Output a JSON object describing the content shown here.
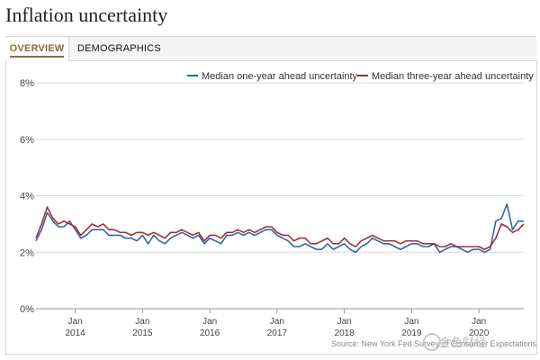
{
  "page": {
    "title": "Inflation uncertainty"
  },
  "tabs": [
    {
      "label": "OVERVIEW",
      "active": true
    },
    {
      "label": "DEMOGRAPHICS",
      "active": false
    }
  ],
  "source": "Source: New York Fed Survey of Consumer Expectations",
  "watermark": "金色财经",
  "colors": {
    "one_year": "#2e6a9e",
    "three_year": "#a33030",
    "grid": "#d9d9d9"
  },
  "chart_data": {
    "type": "line",
    "x_unit": "month",
    "x_start": "2013-06",
    "x_end": "2020-09",
    "ylim": [
      0,
      8
    ],
    "yticks": [
      {
        "value": 0,
        "label": "0%"
      },
      {
        "value": 2,
        "label": "2%"
      },
      {
        "value": 4,
        "label": "4%"
      },
      {
        "value": 6,
        "label": "6%"
      },
      {
        "value": 8,
        "label": "8%"
      }
    ],
    "xticks": [
      {
        "date": "2014-01",
        "label1": "Jan",
        "label2": "2014"
      },
      {
        "date": "2015-01",
        "label1": "Jan",
        "label2": "2015"
      },
      {
        "date": "2016-01",
        "label1": "Jan",
        "label2": "2016"
      },
      {
        "date": "2017-01",
        "label1": "Jan",
        "label2": "2017"
      },
      {
        "date": "2018-01",
        "label1": "Jan",
        "label2": "2018"
      },
      {
        "date": "2019-01",
        "label1": "Jan",
        "label2": "2019"
      },
      {
        "date": "2020-01",
        "label1": "Jan",
        "label2": "2020"
      }
    ],
    "grid": true,
    "legend_position": "top-right",
    "series": [
      {
        "name": "Median one-year ahead uncertainty",
        "color": "#2e6a9e",
        "points": [
          [
            "2013-06",
            2.4
          ],
          [
            "2013-07",
            2.8
          ],
          [
            "2013-08",
            3.4
          ],
          [
            "2013-09",
            3.1
          ],
          [
            "2013-10",
            2.9
          ],
          [
            "2013-11",
            2.9
          ],
          [
            "2013-12",
            3.1
          ],
          [
            "2014-01",
            2.8
          ],
          [
            "2014-02",
            2.5
          ],
          [
            "2014-03",
            2.6
          ],
          [
            "2014-04",
            2.8
          ],
          [
            "2014-05",
            2.8
          ],
          [
            "2014-06",
            2.8
          ],
          [
            "2014-07",
            2.6
          ],
          [
            "2014-08",
            2.6
          ],
          [
            "2014-09",
            2.6
          ],
          [
            "2014-10",
            2.5
          ],
          [
            "2014-11",
            2.5
          ],
          [
            "2014-12",
            2.4
          ],
          [
            "2015-01",
            2.6
          ],
          [
            "2015-02",
            2.3
          ],
          [
            "2015-03",
            2.6
          ],
          [
            "2015-04",
            2.4
          ],
          [
            "2015-05",
            2.3
          ],
          [
            "2015-06",
            2.5
          ],
          [
            "2015-07",
            2.6
          ],
          [
            "2015-08",
            2.7
          ],
          [
            "2015-09",
            2.6
          ],
          [
            "2015-10",
            2.5
          ],
          [
            "2015-11",
            2.6
          ],
          [
            "2015-12",
            2.3
          ],
          [
            "2016-01",
            2.5
          ],
          [
            "2016-02",
            2.4
          ],
          [
            "2016-03",
            2.3
          ],
          [
            "2016-04",
            2.6
          ],
          [
            "2016-05",
            2.6
          ],
          [
            "2016-06",
            2.7
          ],
          [
            "2016-07",
            2.6
          ],
          [
            "2016-08",
            2.7
          ],
          [
            "2016-09",
            2.6
          ],
          [
            "2016-10",
            2.7
          ],
          [
            "2016-11",
            2.8
          ],
          [
            "2016-12",
            2.8
          ],
          [
            "2017-01",
            2.6
          ],
          [
            "2017-02",
            2.5
          ],
          [
            "2017-03",
            2.4
          ],
          [
            "2017-04",
            2.2
          ],
          [
            "2017-05",
            2.2
          ],
          [
            "2017-06",
            2.3
          ],
          [
            "2017-07",
            2.2
          ],
          [
            "2017-08",
            2.1
          ],
          [
            "2017-09",
            2.1
          ],
          [
            "2017-10",
            2.3
          ],
          [
            "2017-11",
            2.1
          ],
          [
            "2017-12",
            2.2
          ],
          [
            "2018-01",
            2.3
          ],
          [
            "2018-02",
            2.1
          ],
          [
            "2018-03",
            2.0
          ],
          [
            "2018-04",
            2.2
          ],
          [
            "2018-05",
            2.3
          ],
          [
            "2018-06",
            2.5
          ],
          [
            "2018-07",
            2.4
          ],
          [
            "2018-08",
            2.3
          ],
          [
            "2018-09",
            2.3
          ],
          [
            "2018-10",
            2.2
          ],
          [
            "2018-11",
            2.1
          ],
          [
            "2018-12",
            2.2
          ],
          [
            "2019-01",
            2.3
          ],
          [
            "2019-02",
            2.3
          ],
          [
            "2019-03",
            2.2
          ],
          [
            "2019-04",
            2.2
          ],
          [
            "2019-05",
            2.3
          ],
          [
            "2019-06",
            2.0
          ],
          [
            "2019-07",
            2.1
          ],
          [
            "2019-08",
            2.2
          ],
          [
            "2019-09",
            2.2
          ],
          [
            "2019-10",
            2.1
          ],
          [
            "2019-11",
            2.0
          ],
          [
            "2019-12",
            2.1
          ],
          [
            "2020-01",
            2.1
          ],
          [
            "2020-02",
            2.0
          ],
          [
            "2020-03",
            2.1
          ],
          [
            "2020-04",
            3.1
          ],
          [
            "2020-05",
            3.2
          ],
          [
            "2020-06",
            3.7
          ],
          [
            "2020-07",
            2.8
          ],
          [
            "2020-08",
            3.1
          ],
          [
            "2020-09",
            3.1
          ]
        ]
      },
      {
        "name": "Median three-year ahead uncertainty",
        "color": "#a33030",
        "points": [
          [
            "2013-06",
            2.5
          ],
          [
            "2013-07",
            3.0
          ],
          [
            "2013-08",
            3.6
          ],
          [
            "2013-09",
            3.2
          ],
          [
            "2013-10",
            3.0
          ],
          [
            "2013-11",
            3.1
          ],
          [
            "2013-12",
            3.0
          ],
          [
            "2014-01",
            2.9
          ],
          [
            "2014-02",
            2.6
          ],
          [
            "2014-03",
            2.8
          ],
          [
            "2014-04",
            3.0
          ],
          [
            "2014-05",
            2.9
          ],
          [
            "2014-06",
            3.0
          ],
          [
            "2014-07",
            2.8
          ],
          [
            "2014-08",
            2.8
          ],
          [
            "2014-09",
            2.7
          ],
          [
            "2014-10",
            2.7
          ],
          [
            "2014-11",
            2.6
          ],
          [
            "2014-12",
            2.7
          ],
          [
            "2015-01",
            2.7
          ],
          [
            "2015-02",
            2.6
          ],
          [
            "2015-03",
            2.7
          ],
          [
            "2015-04",
            2.6
          ],
          [
            "2015-05",
            2.5
          ],
          [
            "2015-06",
            2.7
          ],
          [
            "2015-07",
            2.7
          ],
          [
            "2015-08",
            2.8
          ],
          [
            "2015-09",
            2.7
          ],
          [
            "2015-10",
            2.6
          ],
          [
            "2015-11",
            2.7
          ],
          [
            "2015-12",
            2.4
          ],
          [
            "2016-01",
            2.6
          ],
          [
            "2016-02",
            2.6
          ],
          [
            "2016-03",
            2.5
          ],
          [
            "2016-04",
            2.7
          ],
          [
            "2016-05",
            2.7
          ],
          [
            "2016-06",
            2.8
          ],
          [
            "2016-07",
            2.7
          ],
          [
            "2016-08",
            2.8
          ],
          [
            "2016-09",
            2.7
          ],
          [
            "2016-10",
            2.8
          ],
          [
            "2016-11",
            2.9
          ],
          [
            "2016-12",
            2.9
          ],
          [
            "2017-01",
            2.7
          ],
          [
            "2017-02",
            2.6
          ],
          [
            "2017-03",
            2.6
          ],
          [
            "2017-04",
            2.4
          ],
          [
            "2017-05",
            2.5
          ],
          [
            "2017-06",
            2.5
          ],
          [
            "2017-07",
            2.3
          ],
          [
            "2017-08",
            2.3
          ],
          [
            "2017-09",
            2.4
          ],
          [
            "2017-10",
            2.5
          ],
          [
            "2017-11",
            2.3
          ],
          [
            "2017-12",
            2.3
          ],
          [
            "2018-01",
            2.5
          ],
          [
            "2018-02",
            2.3
          ],
          [
            "2018-03",
            2.2
          ],
          [
            "2018-04",
            2.4
          ],
          [
            "2018-05",
            2.5
          ],
          [
            "2018-06",
            2.6
          ],
          [
            "2018-07",
            2.5
          ],
          [
            "2018-08",
            2.4
          ],
          [
            "2018-09",
            2.4
          ],
          [
            "2018-10",
            2.4
          ],
          [
            "2018-11",
            2.3
          ],
          [
            "2018-12",
            2.4
          ],
          [
            "2019-01",
            2.4
          ],
          [
            "2019-02",
            2.4
          ],
          [
            "2019-03",
            2.3
          ],
          [
            "2019-04",
            2.3
          ],
          [
            "2019-05",
            2.3
          ],
          [
            "2019-06",
            2.2
          ],
          [
            "2019-07",
            2.2
          ],
          [
            "2019-08",
            2.3
          ],
          [
            "2019-09",
            2.2
          ],
          [
            "2019-10",
            2.2
          ],
          [
            "2019-11",
            2.2
          ],
          [
            "2019-12",
            2.2
          ],
          [
            "2020-01",
            2.2
          ],
          [
            "2020-02",
            2.1
          ],
          [
            "2020-03",
            2.2
          ],
          [
            "2020-04",
            2.5
          ],
          [
            "2020-05",
            3.0
          ],
          [
            "2020-06",
            2.9
          ],
          [
            "2020-07",
            2.7
          ],
          [
            "2020-08",
            2.8
          ],
          [
            "2020-09",
            3.0
          ]
        ]
      }
    ]
  }
}
